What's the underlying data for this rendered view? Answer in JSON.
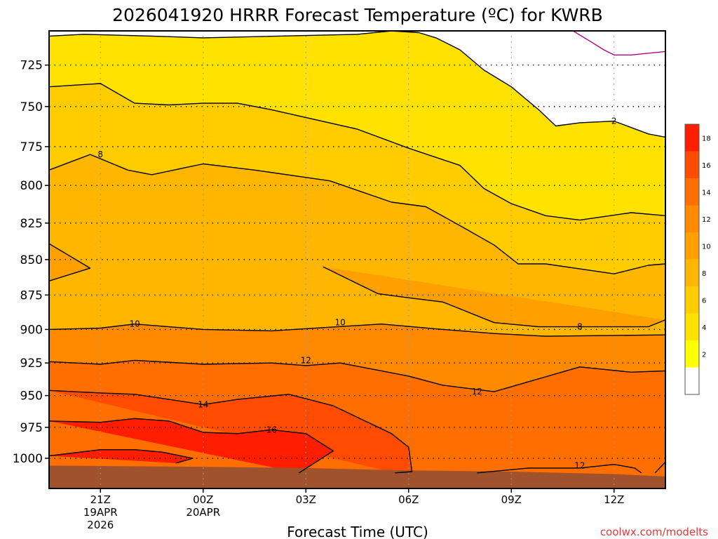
{
  "chart_data": {
    "type": "filled-contour",
    "title": "2026041920 HRRR Forecast Temperature (ºC) for KWRB",
    "xlabel": "Forecast Time (UTC)",
    "ylabel": "",
    "credit": "coolwx.com/modelts",
    "y_axis": {
      "scale": "log-pressure",
      "inverted": true,
      "range_hpa": [
        1025,
        705
      ],
      "tick_labels": [
        "725",
        "750",
        "775",
        "800",
        "825",
        "850",
        "875",
        "900",
        "925",
        "950",
        "975",
        "1000"
      ]
    },
    "x_axis": {
      "range_hours": [
        -1.5,
        16.5
      ],
      "ticks": [
        {
          "hour": 0,
          "label": "21Z",
          "date": "19APR",
          "year": "2026"
        },
        {
          "hour": 3,
          "label": "00Z",
          "date": "20APR",
          "year": ""
        },
        {
          "hour": 6,
          "label": "03Z",
          "date": "",
          "year": ""
        },
        {
          "hour": 9,
          "label": "06Z",
          "date": "",
          "year": ""
        },
        {
          "hour": 12,
          "label": "09Z",
          "date": "",
          "year": ""
        },
        {
          "hour": 15,
          "label": "12Z",
          "date": "",
          "year": ""
        }
      ]
    },
    "grid": true,
    "colorbar": {
      "placement": "right",
      "levels": [
        {
          "label": "",
          "color": "#ffffff"
        },
        {
          "label": "2",
          "color": "#ffff00"
        },
        {
          "label": "4",
          "color": "#ffe200"
        },
        {
          "label": "6",
          "color": "#ffcc00"
        },
        {
          "label": "8",
          "color": "#ffb600"
        },
        {
          "label": "10",
          "color": "#ffa000"
        },
        {
          "label": "12",
          "color": "#ff8a00"
        },
        {
          "label": "14",
          "color": "#ff6e00"
        },
        {
          "label": "16",
          "color": "#ff4c00"
        },
        {
          "label": "18",
          "color": "#ff1e00"
        }
      ]
    },
    "contours": [
      {
        "level": 2,
        "points": [
          [
            -1.5,
            708
          ],
          [
            -0.5,
            707
          ],
          [
            1.5,
            708
          ],
          [
            3,
            709
          ],
          [
            7.5,
            707
          ],
          [
            8.5,
            705
          ],
          [
            9.3,
            706
          ],
          [
            9.8,
            709
          ],
          [
            10.5,
            716
          ],
          [
            11.2,
            728
          ],
          [
            12,
            738
          ],
          [
            12.4,
            745
          ],
          [
            12.8,
            752
          ],
          [
            13.3,
            762
          ],
          [
            14,
            760
          ],
          [
            15,
            759
          ],
          [
            16,
            767
          ],
          [
            16.5,
            769
          ]
        ],
        "label": {
          "text": "2",
          "at": [
            15,
            759
          ]
        }
      },
      {
        "level": 4,
        "points": [
          [
            -1.5,
            738
          ],
          [
            0,
            736
          ],
          [
            1,
            748
          ],
          [
            2,
            749
          ],
          [
            3,
            748
          ],
          [
            4,
            748
          ],
          [
            5,
            752
          ],
          [
            7.5,
            764
          ],
          [
            9,
            776
          ],
          [
            10.5,
            787
          ],
          [
            11.2,
            802
          ],
          [
            12,
            812
          ],
          [
            13,
            820
          ],
          [
            14,
            823
          ],
          [
            15.5,
            818
          ],
          [
            16.5,
            820
          ]
        ]
      },
      {
        "level": 6,
        "points": [
          [
            -1.5,
            790
          ],
          [
            -0.3,
            780
          ],
          [
            0.8,
            790
          ],
          [
            1.5,
            793
          ],
          [
            3,
            786
          ],
          [
            4.5,
            790
          ],
          [
            6.7,
            797
          ],
          [
            8.5,
            811
          ],
          [
            9.5,
            814
          ],
          [
            10.6,
            828
          ],
          [
            11.5,
            840
          ],
          [
            12.2,
            853
          ],
          [
            13,
            853
          ],
          [
            15,
            860
          ],
          [
            16,
            854
          ],
          [
            16.5,
            853
          ]
        ]
      },
      {
        "level": 8,
        "points": [
          [
            -1.5,
            865
          ],
          [
            -0.3,
            856
          ],
          [
            -1.5,
            839
          ]
        ],
        "label": {
          "text": "8",
          "at": [
            0,
            780
          ]
        }
      },
      {
        "level": 8,
        "points": [
          [
            6.5,
            855
          ],
          [
            8.1,
            874
          ],
          [
            9,
            877
          ],
          [
            10,
            880
          ],
          [
            11.5,
            895
          ],
          [
            12.8,
            898
          ],
          [
            16,
            898
          ],
          [
            16.5,
            893
          ]
        ],
        "label": {
          "text": "8",
          "at": [
            14,
            898
          ]
        }
      },
      {
        "level": 10,
        "points": [
          [
            -1.5,
            900
          ],
          [
            0,
            899
          ],
          [
            1,
            896
          ],
          [
            3,
            900
          ],
          [
            5,
            901
          ],
          [
            8.2,
            896
          ],
          [
            10,
            900
          ],
          [
            11.5,
            903
          ],
          [
            13,
            905
          ],
          [
            16.5,
            904
          ]
        ],
        "label": {
          "text": "10",
          "at": [
            1,
            896
          ]
        }
      },
      {
        "level": 10,
        "points": [],
        "label": {
          "text": "10",
          "at": [
            7,
            895
          ]
        }
      },
      {
        "level": 12,
        "points": [
          [
            -1.5,
            924
          ],
          [
            0,
            926
          ],
          [
            1,
            923
          ],
          [
            3,
            926
          ],
          [
            5,
            925
          ],
          [
            6,
            927
          ],
          [
            7,
            925
          ],
          [
            9,
            935
          ],
          [
            10,
            942
          ],
          [
            11.5,
            947
          ],
          [
            14,
            928
          ],
          [
            15.5,
            932
          ],
          [
            16.5,
            931
          ]
        ],
        "label": {
          "text": "12",
          "at": [
            6,
            923
          ]
        }
      },
      {
        "level": 12,
        "points": [],
        "label": {
          "text": "12",
          "at": [
            11,
            947
          ]
        }
      },
      {
        "level": 12,
        "points": [
          [
            11,
            1012
          ],
          [
            12.5,
            1008
          ],
          [
            14,
            1008
          ],
          [
            15,
            1005
          ],
          [
            15.6,
            1008
          ],
          [
            15.8,
            1012
          ]
        ],
        "label": {
          "text": "12",
          "at": [
            14,
            1006
          ]
        }
      },
      {
        "level": 12,
        "points": [
          [
            16.2,
            1012
          ],
          [
            16.5,
            1003
          ]
        ]
      },
      {
        "level": 14,
        "points": [
          [
            -1.5,
            946
          ],
          [
            0,
            948
          ],
          [
            1,
            949
          ],
          [
            3,
            957
          ],
          [
            4,
            953
          ],
          [
            5.5,
            949
          ],
          [
            6.8,
            958
          ],
          [
            8.5,
            980
          ],
          [
            9,
            991
          ],
          [
            9.1,
            1011
          ],
          [
            8.6,
            1012
          ]
        ],
        "label": {
          "text": "14",
          "at": [
            3,
            957
          ]
        }
      },
      {
        "level": 16,
        "points": [
          [
            -1.5,
            970
          ],
          [
            0,
            971
          ],
          [
            1,
            968
          ],
          [
            2,
            970
          ],
          [
            3,
            979
          ],
          [
            4,
            980
          ],
          [
            5,
            977
          ],
          [
            6,
            980
          ],
          [
            6.8,
            994
          ],
          [
            5.8,
            1012
          ]
        ],
        "label": {
          "text": "16",
          "at": [
            5,
            977
          ]
        }
      },
      {
        "level": 18,
        "points": [
          [
            -1.5,
            998
          ],
          [
            0,
            993
          ],
          [
            1,
            993
          ],
          [
            1.8,
            995
          ],
          [
            2.7,
            1000
          ],
          [
            2.2,
            1004
          ]
        ]
      },
      {
        "level": 0,
        "color": "#b0008a",
        "points": [
          [
            13.8,
            705
          ],
          [
            14.3,
            711
          ],
          [
            14.7,
            716
          ],
          [
            15,
            719
          ],
          [
            15.5,
            719
          ],
          [
            16.5,
            717
          ]
        ]
      }
    ],
    "ground": {
      "color": "#a0522d",
      "points": [
        [
          -1.5,
          1006
        ],
        [
          3,
          1007
        ],
        [
          6,
          1008
        ],
        [
          9,
          1010
        ],
        [
          12,
          1011
        ],
        [
          15,
          1013
        ],
        [
          16.5,
          1015
        ]
      ]
    }
  }
}
